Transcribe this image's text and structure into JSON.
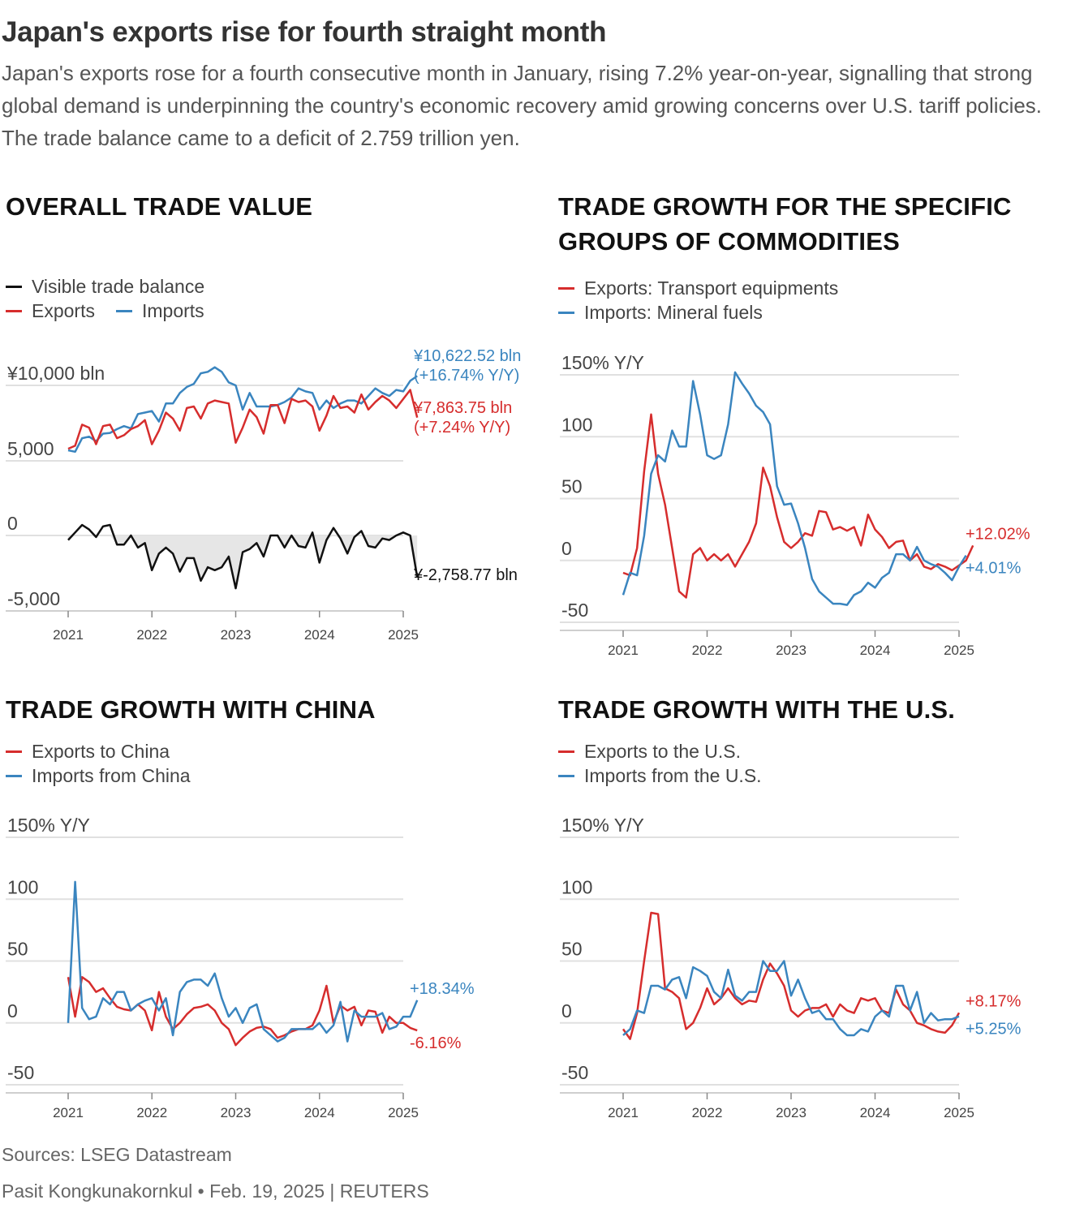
{
  "header": {
    "title": "Japan's exports rise for fourth straight month",
    "subtitle": "Japan's exports rose for a fourth consecutive month in January, rising 7.2% year-on-year, signalling that strong global demand is underpinning the country's economic recovery amid growing concerns over U.S. tariff policies. The trade balance came to a deficit of 2.759 trillion yen."
  },
  "footer": {
    "sources": "Sources: LSEG Datastream",
    "byline": "Pasit Kongkunakornkul • Feb. 19, 2025 | REUTERS"
  },
  "colors": {
    "red": "#d62d2d",
    "blue": "#3a85bf",
    "black": "#111111",
    "grid": "#e0e0e0",
    "fill": "#e6e6e6"
  },
  "chart_data": [
    {
      "id": "overall",
      "type": "line",
      "title": "OVERALL TRADE VALUE",
      "legend": [
        "Visible trade balance",
        "Exports",
        "Imports"
      ],
      "x_ticks": [
        "2021",
        "2022",
        "2023",
        "2024",
        "2025"
      ],
      "x_start": 2021.0,
      "x_step": 0.0833333,
      "upper_panel": {
        "ylim": [
          3000,
          12000
        ],
        "ticks": [
          {
            "v": 10000,
            "label": "¥10,000 bln"
          },
          {
            "v": 5000,
            "label": "5,000"
          }
        ],
        "series": [
          {
            "name": "Imports",
            "color": "blue",
            "values": [
              5700,
              5600,
              6500,
              6600,
              6300,
              6800,
              6850,
              7100,
              7300,
              7150,
              8100,
              8200,
              8300,
              7600,
              8800,
              8800,
              9500,
              9900,
              10100,
              10800,
              10900,
              11200,
              10900,
              10200,
              10000,
              8400,
              9500,
              8600,
              8600,
              8600,
              8700,
              8900,
              9200,
              9800,
              9600,
              9500,
              8400,
              9000,
              8500,
              8800,
              9000,
              9000,
              8800,
              9300,
              9800,
              9500,
              9300,
              9700,
              9600,
              10300,
              10622.52
            ]
          },
          {
            "name": "Exports",
            "color": "red",
            "values": [
              5800,
              6000,
              7400,
              7200,
              6100,
              7300,
              7400,
              6500,
              6700,
              7100,
              7300,
              7700,
              6100,
              7000,
              8200,
              7800,
              7000,
              8500,
              8600,
              7800,
              8800,
              9000,
              8900,
              8800,
              6200,
              7200,
              8400,
              7900,
              6800,
              8700,
              8700,
              7500,
              9100,
              8900,
              9000,
              8600,
              7000,
              8000,
              9300,
              8500,
              8600,
              8200,
              9400,
              8400,
              8900,
              9300,
              9000,
              8500,
              9100,
              9700,
              7863.75
            ]
          }
        ],
        "end_labels": [
          {
            "series": "Imports",
            "lines": [
              "¥10,622.52 bln",
              "(+16.74% Y/Y)"
            ]
          },
          {
            "series": "Exports",
            "lines": [
              "¥7,863.75 bln",
              "(+7.24% Y/Y)"
            ]
          }
        ]
      },
      "lower_panel": {
        "ylim": [
          -5000,
          1000
        ],
        "ticks": [
          {
            "v": 0,
            "label": "0"
          },
          {
            "v": -5000,
            "label": "-5,000"
          }
        ],
        "series": [
          {
            "name": "Visible trade balance",
            "color": "black",
            "values": [
              -300,
              200,
              700,
              400,
              -100,
              600,
              700,
              -600,
              -600,
              0,
              -800,
              -500,
              -2300,
              -1200,
              -800,
              -1200,
              -2400,
              -1500,
              -1500,
              -3000,
              -2100,
              -2300,
              -2100,
              -1400,
              -3500,
              -1100,
              -900,
              -500,
              -1400,
              0,
              0,
              -800,
              0,
              -700,
              -800,
              200,
              -1800,
              -300,
              500,
              -200,
              -1200,
              -100,
              300,
              -700,
              -800,
              -200,
              -300,
              0,
              200,
              0,
              -2758.77
            ]
          }
        ],
        "end_labels": [
          {
            "series": "Visible trade balance",
            "lines": [
              "¥-2,758.77 bln"
            ]
          }
        ]
      }
    },
    {
      "id": "commodities",
      "type": "line",
      "title": "TRADE GROWTH FOR THE SPECIFIC GROUPS OF COMMODITIES",
      "title_lines": [
        "TRADE GROWTH FOR THE SPECIFIC",
        "GROUPS OF COMMODITIES"
      ],
      "legend": [
        "Exports: Transport equipments",
        "Imports: Mineral fuels"
      ],
      "x_ticks": [
        "2021",
        "2022",
        "2023",
        "2024",
        "2025"
      ],
      "x_start": 2021.0,
      "x_step": 0.0833333,
      "ylim": [
        -50,
        150
      ],
      "y_ticks": [
        {
          "v": 150,
          "label": "150% Y/Y"
        },
        {
          "v": 100,
          "label": "100"
        },
        {
          "v": 50,
          "label": "50"
        },
        {
          "v": 0,
          "label": "0"
        },
        {
          "v": -50,
          "label": "-50"
        }
      ],
      "series": [
        {
          "name": "Exports: Transport equipments",
          "color": "red",
          "values": [
            -10,
            -12,
            10,
            72,
            118,
            70,
            45,
            10,
            -25,
            -30,
            5,
            10,
            0,
            5,
            0,
            5,
            -5,
            5,
            15,
            30,
            75,
            60,
            35,
            15,
            10,
            15,
            22,
            20,
            40,
            39,
            25,
            27,
            24,
            27,
            12,
            37,
            25,
            19,
            10,
            15,
            16,
            0,
            5,
            -5,
            -7,
            -3,
            -5,
            -8,
            -4,
            0,
            12.02
          ]
        },
        {
          "name": "Imports: Mineral fuels",
          "color": "blue",
          "values": [
            -28,
            -10,
            -12,
            20,
            70,
            85,
            80,
            105,
            92,
            92,
            145,
            118,
            85,
            82,
            85,
            110,
            152,
            143,
            135,
            125,
            120,
            110,
            60,
            45,
            46,
            30,
            10,
            -15,
            -25,
            -30,
            -35,
            -35,
            -36,
            -28,
            -25,
            -18,
            -22,
            -14,
            -10,
            5,
            5,
            0,
            11,
            0,
            -3,
            -5,
            -10,
            -16,
            -5,
            4.01
          ]
        }
      ],
      "end_labels": [
        {
          "series": "Exports: Transport equipments",
          "text": "+12.02%"
        },
        {
          "series": "Imports: Mineral fuels",
          "text": "+4.01%"
        }
      ]
    },
    {
      "id": "china",
      "type": "line",
      "title": "TRADE GROWTH WITH CHINA",
      "legend": [
        "Exports to China",
        "Imports from China"
      ],
      "x_ticks": [
        "2021",
        "2022",
        "2023",
        "2024",
        "2025"
      ],
      "x_start": 2021.0,
      "x_step": 0.0833333,
      "ylim": [
        -50,
        150
      ],
      "y_ticks": [
        {
          "v": 150,
          "label": "150% Y/Y"
        },
        {
          "v": 100,
          "label": "100"
        },
        {
          "v": 50,
          "label": "50"
        },
        {
          "v": 0,
          "label": "0"
        },
        {
          "v": -50,
          "label": "-50"
        }
      ],
      "series": [
        {
          "name": "Exports to China",
          "color": "red",
          "values": [
            37,
            5,
            37,
            33,
            25,
            28,
            20,
            13,
            11,
            10,
            15,
            10,
            -6,
            25,
            5,
            -5,
            0,
            7,
            12,
            13,
            15,
            10,
            0,
            -5,
            -18,
            -12,
            -7,
            -4,
            -3,
            -5,
            -12,
            -10,
            -7,
            -5,
            -5,
            -2,
            10,
            30,
            0,
            14,
            10,
            13,
            -2,
            10,
            9,
            -8,
            5,
            0,
            0,
            -4,
            -6.16
          ]
        },
        {
          "name": "Imports from China",
          "color": "blue",
          "values": [
            0,
            114,
            12,
            3,
            5,
            20,
            15,
            25,
            25,
            10,
            15,
            18,
            20,
            10,
            20,
            -10,
            25,
            33,
            35,
            35,
            30,
            40,
            20,
            5,
            12,
            0,
            12,
            15,
            -5,
            -10,
            -15,
            -12,
            -5,
            -5,
            -5,
            -5,
            0,
            -8,
            -2,
            17,
            -15,
            10,
            5,
            5,
            5,
            8,
            -5,
            -3,
            5,
            5,
            18.34
          ]
        }
      ],
      "end_labels": [
        {
          "series": "Imports from China",
          "text": "+18.34%"
        },
        {
          "series": "Exports to China",
          "text": "-6.16%"
        }
      ]
    },
    {
      "id": "us",
      "type": "line",
      "title": "TRADE GROWTH WITH THE U.S.",
      "legend": [
        "Exports to the U.S.",
        "Imports from the U.S."
      ],
      "x_ticks": [
        "2021",
        "2022",
        "2023",
        "2024",
        "2025"
      ],
      "x_start": 2021.0,
      "x_step": 0.0833333,
      "ylim": [
        -50,
        150
      ],
      "y_ticks": [
        {
          "v": 150,
          "label": "150% Y/Y"
        },
        {
          "v": 100,
          "label": "100"
        },
        {
          "v": 50,
          "label": "50"
        },
        {
          "v": 0,
          "label": "0"
        },
        {
          "v": -50,
          "label": "-50"
        }
      ],
      "series": [
        {
          "name": "Exports to the U.S.",
          "color": "red",
          "values": [
            -5,
            -13,
            8,
            50,
            89,
            88,
            28,
            25,
            20,
            -5,
            0,
            12,
            28,
            15,
            20,
            28,
            20,
            15,
            18,
            17,
            35,
            48,
            40,
            30,
            10,
            5,
            10,
            12,
            12,
            15,
            5,
            15,
            10,
            8,
            20,
            18,
            20,
            10,
            8,
            27,
            15,
            10,
            0,
            -2,
            -5,
            -7,
            -8,
            -2,
            8.17
          ]
        },
        {
          "name": "Imports from the U.S.",
          "color": "blue",
          "values": [
            -10,
            -5,
            10,
            8,
            30,
            30,
            27,
            35,
            37,
            20,
            45,
            42,
            38,
            25,
            20,
            43,
            22,
            18,
            25,
            25,
            50,
            42,
            42,
            50,
            22,
            35,
            20,
            8,
            10,
            3,
            3,
            -5,
            -10,
            -10,
            -5,
            -7,
            5,
            10,
            5,
            30,
            30,
            10,
            25,
            0,
            8,
            2,
            3,
            3,
            5.25
          ]
        }
      ],
      "end_labels": [
        {
          "series": "Exports to the U.S.",
          "text": "+8.17%"
        },
        {
          "series": "Imports from the U.S.",
          "text": "+5.25%"
        }
      ]
    }
  ]
}
